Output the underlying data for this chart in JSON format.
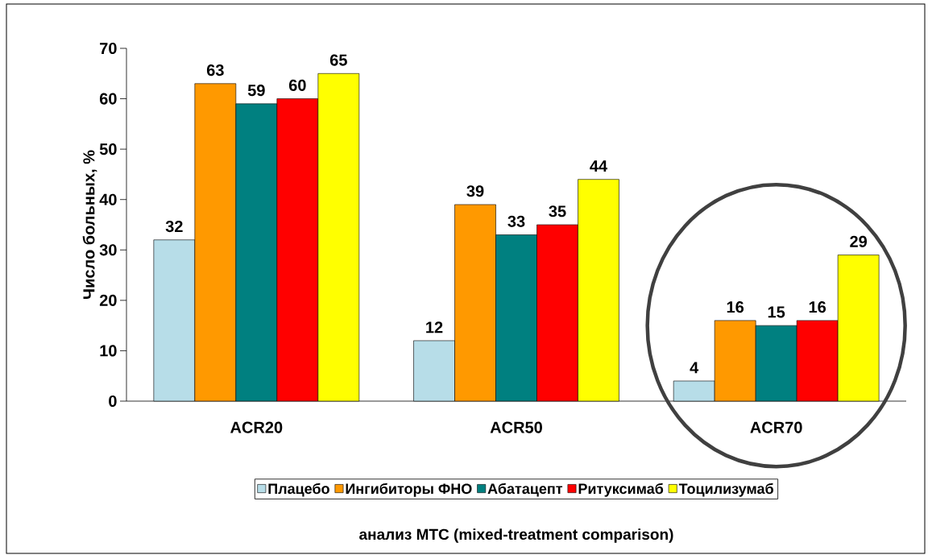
{
  "chart_data": {
    "type": "bar",
    "ylabel": "Число больных, %",
    "annotations": [
      "анализ МТС (mixed-treatment comparison)"
    ],
    "categories": [
      "ACR20",
      "ACR50",
      "ACR70"
    ],
    "series": [
      {
        "name": "Плацебо",
        "color": "#b7dde8",
        "values": [
          32,
          12,
          4
        ]
      },
      {
        "name": "Ингибиторы ФНО",
        "color": "#ff9900",
        "values": [
          63,
          39,
          16
        ]
      },
      {
        "name": "Абатацепт",
        "color": "#008080",
        "values": [
          59,
          33,
          15
        ]
      },
      {
        "name": "Ритуксимаб",
        "color": "#ff0000",
        "values": [
          60,
          35,
          16
        ]
      },
      {
        "name": "Тоцилизумаб",
        "color": "#ffff00",
        "values": [
          65,
          44,
          29
        ]
      }
    ],
    "ylim": [
      0,
      70
    ],
    "yticks": [
      0,
      10,
      20,
      30,
      40,
      50,
      60,
      70
    ],
    "data_labels": true,
    "legend": "bottom",
    "grid": false
  }
}
